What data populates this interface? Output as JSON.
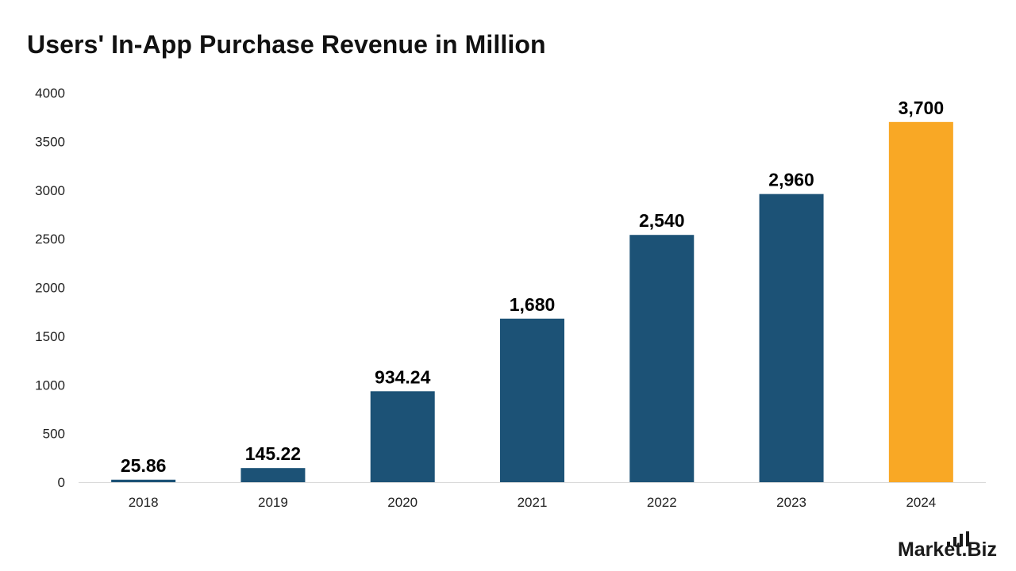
{
  "chart_data": {
    "type": "bar",
    "title": "Users' In-App Purchase Revenue in Million",
    "xlabel": "",
    "ylabel": "",
    "categories": [
      "2018",
      "2019",
      "2020",
      "2021",
      "2022",
      "2023",
      "2024"
    ],
    "values": [
      25.86,
      145.22,
      934.24,
      1680,
      2540,
      2960,
      3700
    ],
    "data_labels": [
      "25.86",
      "145.22",
      "934.24",
      "1,680",
      "2,540",
      "2,960",
      "3,700"
    ],
    "ylim": [
      0,
      4000
    ],
    "yticks": [
      0,
      500,
      1000,
      1500,
      2000,
      2500,
      3000,
      3500,
      4000
    ],
    "grid": false,
    "legend": "none",
    "colors": {
      "bar": "#1c5276",
      "highlight_bar": "#f9a825",
      "highlight_index": 6,
      "axis_line": "#d9d9d9",
      "tick_text": "#222222",
      "label_text": "#000000"
    }
  },
  "brand": {
    "logo_text": "Market.Biz"
  }
}
